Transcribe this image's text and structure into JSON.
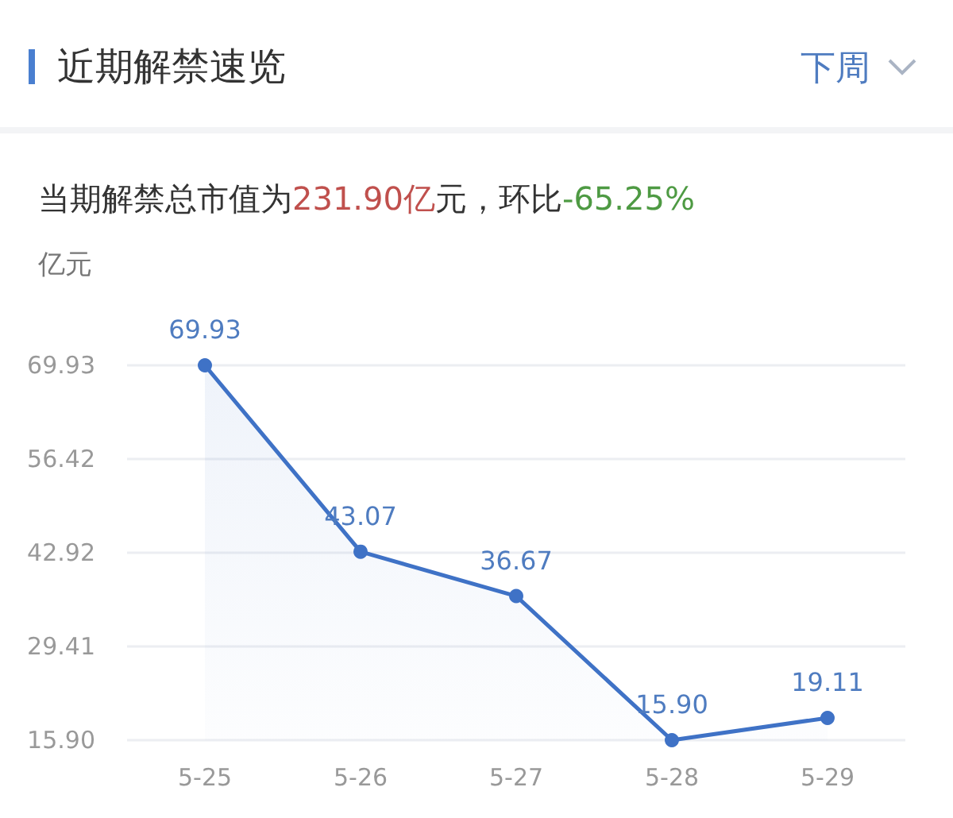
{
  "chart_data": {
    "type": "area",
    "title": "近期解禁速览",
    "subtitle": "当期解禁总市值为231.90亿元，环比-65.25%",
    "ylabel": "亿元",
    "annotations": [
      "下周"
    ],
    "categories": [
      "5-25",
      "5-26",
      "5-27",
      "5-28",
      "5-29"
    ],
    "series": [
      {
        "color": "#3f72c6",
        "values": [
          69.93,
          43.07,
          36.67,
          15.9,
          19.11
        ],
        "value_labels": [
          "69.93",
          "43.07",
          "36.67",
          "15.90",
          "19.11"
        ]
      }
    ],
    "ylim": [
      15.9,
      69.93
    ],
    "yticks": [
      {
        "value": 15.9,
        "label": "15.90"
      },
      {
        "value": 29.41,
        "label": "29.41"
      },
      {
        "value": 42.92,
        "label": "42.92"
      },
      {
        "value": 56.42,
        "label": "56.42"
      },
      {
        "value": 69.93,
        "label": "69.93"
      }
    ],
    "grid": "y",
    "marker": "circle"
  }
}
